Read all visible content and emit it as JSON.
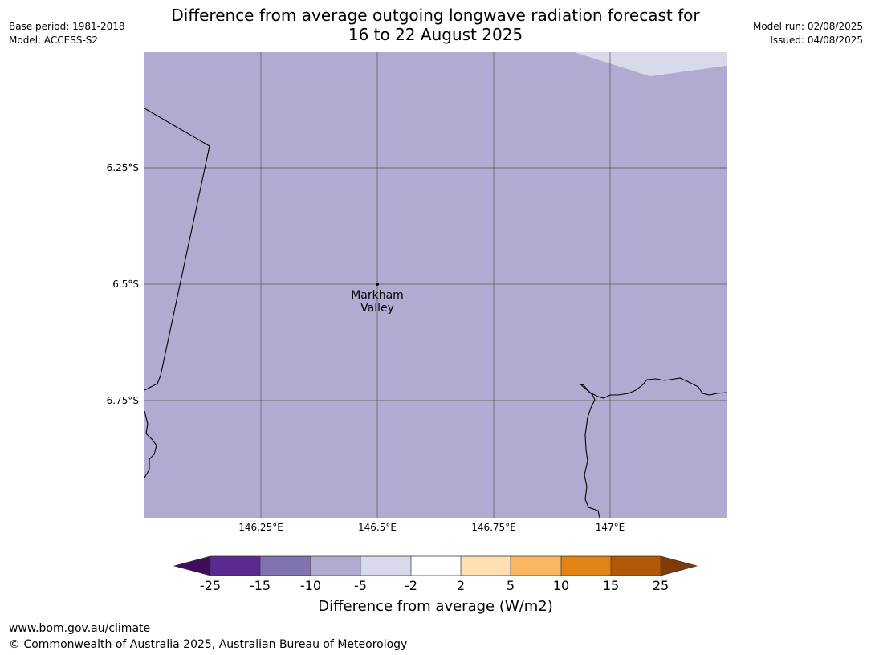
{
  "header": {
    "title_line1": "Difference from average outgoing longwave radiation forecast for",
    "title_line2": "16 to 22 August 2025",
    "base_period": "Base period: 1981-2018",
    "model": "Model: ACCESS-S2",
    "model_run": "Model run: 02/08/2025",
    "issued": "Issued: 04/08/2025"
  },
  "map": {
    "background_color": "#b1abd2",
    "corner_patch_color": "#d8d9ea",
    "lat_ticks": [
      "6.25°S",
      "6.5°S",
      "6.75°S"
    ],
    "lon_ticks": [
      "146.25°E",
      "146.5°E",
      "146.75°E",
      "147°E"
    ],
    "place": {
      "name_line1": "Markham",
      "name_line2": "Valley"
    }
  },
  "colorbar": {
    "label": "Difference from average (W/m2)",
    "ticks": [
      "-25",
      "-15",
      "-10",
      "-5",
      "-2",
      "2",
      "5",
      "10",
      "15",
      "25"
    ],
    "colors": [
      "#3f0c5d",
      "#5b2a90",
      "#8173ae",
      "#b1abd2",
      "#d8d9ea",
      "#ffffff",
      "#fddfb4",
      "#fbb662",
      "#e38315",
      "#b35806",
      "#7f3b08"
    ]
  },
  "footer": {
    "url": "www.bom.gov.au/climate",
    "copyright": "© Commonwealth of Australia 2025, Australian Bureau of Meteorology"
  }
}
